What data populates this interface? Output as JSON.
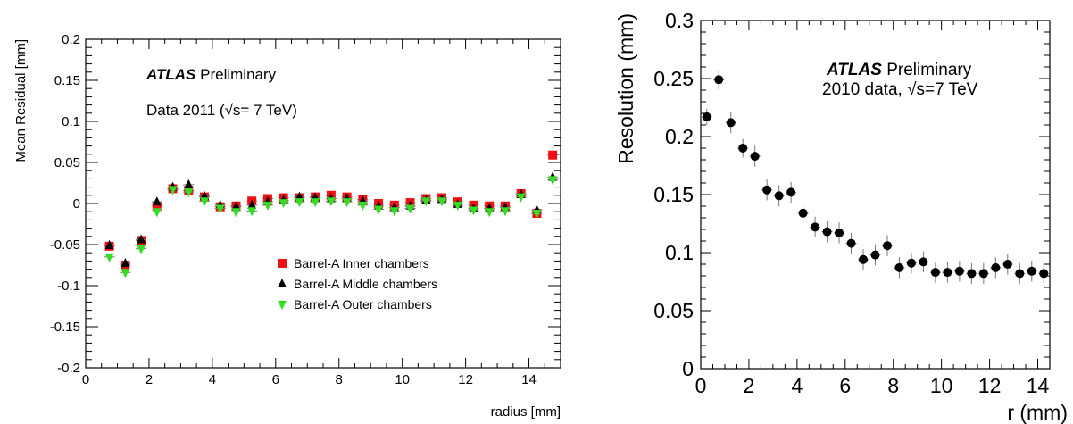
{
  "chart_data": [
    {
      "type": "scatter",
      "xlabel": "radius [mm]",
      "ylabel": "Mean Residual [mm]",
      "xlim": [
        0,
        15
      ],
      "ylim": [
        -0.2,
        0.2
      ],
      "x_ticks": [
        "0",
        "2",
        "4",
        "6",
        "8",
        "10",
        "12",
        "14"
      ],
      "y_ticks": [
        "-0.2",
        "-0.15",
        "-0.1",
        "-0.05",
        "0",
        "0.05",
        "0.1",
        "0.15",
        "0.2"
      ],
      "annotations": {
        "atlas": "ATLAS",
        "preliminary": "Preliminary",
        "data_label": "Data 2011 (√s= 7 TeV)"
      },
      "x": [
        0.75,
        1.25,
        1.75,
        2.25,
        2.75,
        3.25,
        3.75,
        4.25,
        4.75,
        5.25,
        5.75,
        6.25,
        6.75,
        7.25,
        7.75,
        8.25,
        8.75,
        9.25,
        9.75,
        10.25,
        10.75,
        11.25,
        11.75,
        12.25,
        12.75,
        13.25,
        13.75,
        14.25,
        14.75
      ],
      "series": [
        {
          "name": "Barrel-A Inner chambers",
          "color": "#ee1111",
          "marker": "square",
          "values": [
            -0.052,
            -0.075,
            -0.045,
            -0.003,
            0.018,
            0.016,
            0.008,
            -0.004,
            -0.003,
            0.003,
            0.006,
            0.007,
            0.007,
            0.008,
            0.01,
            0.008,
            0.005,
            0.0,
            -0.002,
            0.001,
            0.006,
            0.007,
            0.002,
            -0.002,
            -0.003,
            -0.003,
            0.012,
            -0.012,
            0.059
          ]
        },
        {
          "name": "Barrel-A Middle chambers",
          "color": "#000000",
          "marker": "triangle-up",
          "values": [
            -0.051,
            -0.073,
            -0.044,
            0.002,
            0.02,
            0.023,
            0.009,
            -0.002,
            -0.004,
            -0.002,
            0.002,
            0.004,
            0.008,
            0.007,
            0.006,
            0.006,
            0.003,
            -0.003,
            -0.005,
            -0.003,
            0.004,
            0.005,
            -0.001,
            -0.006,
            -0.006,
            -0.005,
            0.011,
            -0.008,
            0.032
          ]
        },
        {
          "name": "Barrel-A Outer chambers",
          "color": "#33dd22",
          "marker": "triangle-down",
          "values": [
            -0.065,
            -0.084,
            -0.055,
            -0.01,
            0.017,
            0.014,
            0.003,
            -0.006,
            -0.01,
            -0.009,
            -0.002,
            0.001,
            0.002,
            0.002,
            0.003,
            0.002,
            -0.002,
            -0.007,
            -0.009,
            -0.006,
            0.003,
            0.003,
            -0.002,
            -0.008,
            -0.01,
            -0.009,
            0.008,
            -0.012,
            0.029
          ]
        }
      ],
      "legend": "bottom-right"
    },
    {
      "type": "scatter",
      "xlabel": "r (mm)",
      "ylabel": "Resolution (mm)",
      "xlim": [
        0,
        14.5
      ],
      "ylim": [
        0,
        0.3
      ],
      "x_ticks": [
        "0",
        "2",
        "4",
        "6",
        "8",
        "10",
        "12",
        "14"
      ],
      "y_ticks": [
        "0",
        "0.05",
        "0.1",
        "0.15",
        "0.2",
        "0.25",
        "0.3"
      ],
      "annotations": {
        "atlas": "ATLAS",
        "preliminary": "Preliminary",
        "data_label": "2010 data, √s=7 TeV"
      },
      "x": [
        0.25,
        0.75,
        1.25,
        1.75,
        2.25,
        2.75,
        3.25,
        3.75,
        4.25,
        4.75,
        5.25,
        5.75,
        6.25,
        6.75,
        7.25,
        7.75,
        8.25,
        8.75,
        9.25,
        9.75,
        10.25,
        10.75,
        11.25,
        11.75,
        12.25,
        12.75,
        13.25,
        13.75,
        14.25
      ],
      "values": [
        0.217,
        0.249,
        0.212,
        0.19,
        0.183,
        0.154,
        0.149,
        0.152,
        0.134,
        0.122,
        0.118,
        0.117,
        0.108,
        0.094,
        0.098,
        0.106,
        0.087,
        0.091,
        0.092,
        0.083,
        0.083,
        0.084,
        0.082,
        0.082,
        0.087,
        0.09,
        0.082,
        0.084,
        0.082
      ],
      "errors": [
        0.007,
        0.009,
        0.009,
        0.008,
        0.009,
        0.009,
        0.009,
        0.009,
        0.009,
        0.009,
        0.009,
        0.009,
        0.009,
        0.009,
        0.009,
        0.009,
        0.009,
        0.009,
        0.009,
        0.009,
        0.009,
        0.009,
        0.009,
        0.009,
        0.009,
        0.009,
        0.009,
        0.009,
        0.009
      ],
      "color": "#000000",
      "marker": "circle"
    }
  ]
}
